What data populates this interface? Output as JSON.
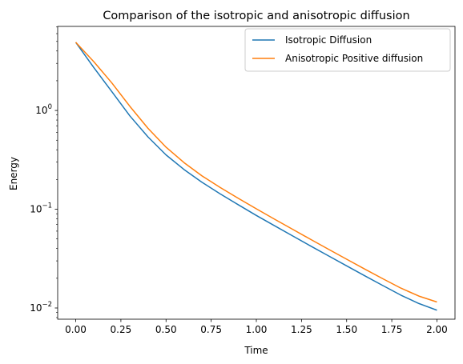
{
  "chart_data": {
    "type": "line",
    "title": "Comparison of the isotropic and anisotropic diffusion",
    "xlabel": "Time",
    "ylabel": "Energy",
    "yscale": "log",
    "xlim": [
      -0.1,
      2.1
    ],
    "ylim": [
      0.0077,
      7.1
    ],
    "xticks": [
      0.0,
      0.25,
      0.5,
      0.75,
      1.0,
      1.25,
      1.5,
      1.75,
      2.0
    ],
    "xtick_labels": [
      "0.00",
      "0.25",
      "0.50",
      "0.75",
      "1.00",
      "1.25",
      "1.50",
      "1.75",
      "2.00"
    ],
    "yticks": [
      {
        "value": 1,
        "base": "10",
        "exp": "0"
      },
      {
        "value": 0.1,
        "base": "10",
        "exp": "−1"
      },
      {
        "value": 0.01,
        "base": "10",
        "exp": "−2"
      }
    ],
    "legend_position": "top-right",
    "series": [
      {
        "name": "Isotropic Diffusion",
        "color": "#1f77b4",
        "x": [
          0.0,
          0.1,
          0.2,
          0.3,
          0.4,
          0.5,
          0.6,
          0.7,
          0.8,
          0.9,
          1.0,
          1.1,
          1.2,
          1.3,
          1.4,
          1.5,
          1.6,
          1.7,
          1.8,
          1.9,
          2.0
        ],
        "y": [
          4.9,
          2.72,
          1.55,
          0.88,
          0.54,
          0.355,
          0.252,
          0.187,
          0.143,
          0.111,
          0.0865,
          0.0682,
          0.0538,
          0.0425,
          0.0337,
          0.0267,
          0.0212,
          0.0169,
          0.0135,
          0.0111,
          0.0095
        ]
      },
      {
        "name": "Anisotropic Positive diffusion",
        "color": "#ff7f0e",
        "x": [
          0.0,
          0.1,
          0.2,
          0.3,
          0.4,
          0.5,
          0.6,
          0.7,
          0.8,
          0.9,
          1.0,
          1.1,
          1.2,
          1.3,
          1.4,
          1.5,
          1.6,
          1.7,
          1.8,
          1.9,
          2.0
        ],
        "y": [
          4.9,
          3.12,
          1.9,
          1.1,
          0.66,
          0.425,
          0.296,
          0.217,
          0.166,
          0.129,
          0.101,
          0.0795,
          0.0628,
          0.0496,
          0.0393,
          0.0312,
          0.0248,
          0.0198,
          0.0159,
          0.0132,
          0.0115
        ]
      }
    ]
  }
}
